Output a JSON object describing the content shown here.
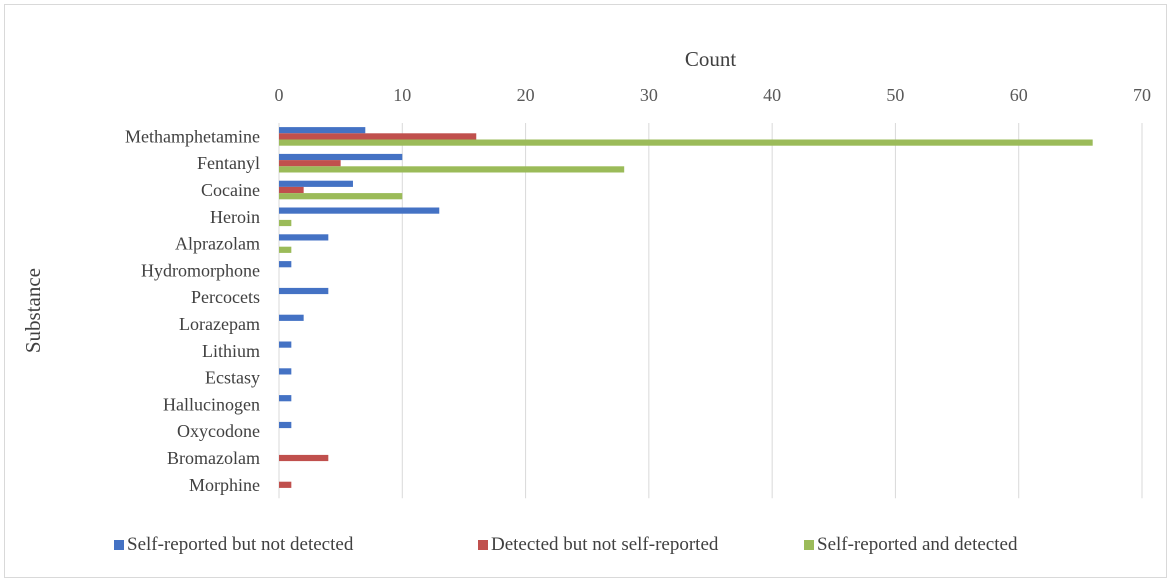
{
  "chart_data": {
    "type": "bar",
    "orientation": "horizontal",
    "title": "",
    "xlabel": "Count",
    "ylabel": "Substance",
    "xlim": [
      0,
      70
    ],
    "xticks": [
      0,
      10,
      20,
      30,
      40,
      50,
      60,
      70
    ],
    "x_axis_position": "top",
    "grid": true,
    "legend_position": "bottom",
    "categories": [
      "Methamphetamine",
      "Fentanyl",
      "Cocaine",
      "Heroin",
      "Alprazolam",
      "Hydromorphone",
      "Percocets",
      "Lorazepam",
      "Lithium",
      "Ecstasy",
      "Hallucinogen",
      "Oxycodone",
      "Bromazolam",
      "Morphine"
    ],
    "series": [
      {
        "name": "Self-reported but not detected",
        "color": "#4472c4",
        "values": [
          7,
          10,
          6,
          13,
          4,
          1,
          4,
          2,
          1,
          1,
          1,
          1,
          0,
          0
        ]
      },
      {
        "name": "Detected but not self-reported",
        "color": "#c0504d",
        "values": [
          16,
          5,
          2,
          0,
          0,
          0,
          0,
          0,
          0,
          0,
          0,
          0,
          4,
          1
        ]
      },
      {
        "name": "Self-reported and detected",
        "color": "#9bbb59",
        "values": [
          66,
          28,
          10,
          1,
          1,
          0,
          0,
          0,
          0,
          0,
          0,
          0,
          0,
          0
        ]
      }
    ]
  }
}
